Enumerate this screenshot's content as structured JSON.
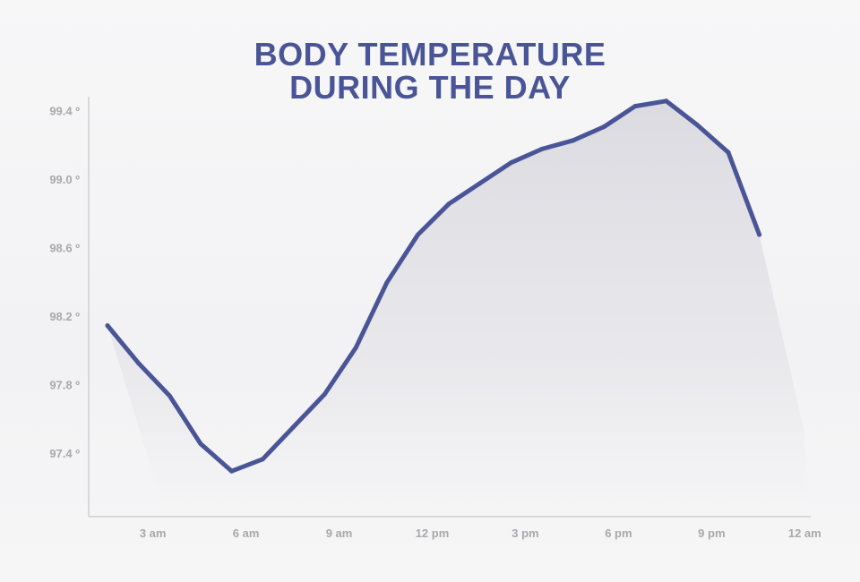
{
  "chart_data": {
    "type": "line",
    "title_lines": [
      "BODY TEMPERATURE",
      "DURING THE DAY"
    ],
    "xlabel": "",
    "ylabel": "",
    "x_ticks": [
      "3 am",
      "6 am",
      "9 am",
      "12 pm",
      "3 pm",
      "6 pm",
      "9 pm",
      "12 am"
    ],
    "y_ticks": [
      "97.4 º",
      "97.8 º",
      "98.2 º",
      "98.6 º",
      "99.0 º",
      "99.4 º"
    ],
    "ylim": [
      97.04,
      99.48
    ],
    "grid": false,
    "series": [
      {
        "x": [
          "2 am",
          "3 am",
          "4 am",
          "5 am",
          "6 am",
          "7 am",
          "8 am",
          "9 am",
          "10 am",
          "11 am",
          "12 pm",
          "1 pm",
          "2 pm",
          "3 pm",
          "4 pm",
          "5 pm",
          "6 pm",
          "7 pm",
          "8 pm",
          "9 pm",
          "10 pm",
          "11 pm"
        ],
        "values": [
          98.15,
          97.93,
          97.74,
          97.46,
          97.3,
          97.37,
          97.56,
          97.75,
          98.02,
          98.4,
          98.68,
          98.86,
          98.98,
          99.1,
          99.18,
          99.23,
          99.31,
          99.43,
          99.46,
          99.32,
          99.16,
          98.68
        ]
      }
    ],
    "colors": {
      "line": "#4a5597",
      "fill": "#dcdce2",
      "axis": "#d0d0d4",
      "tick_text": "#a8a8ad"
    }
  }
}
